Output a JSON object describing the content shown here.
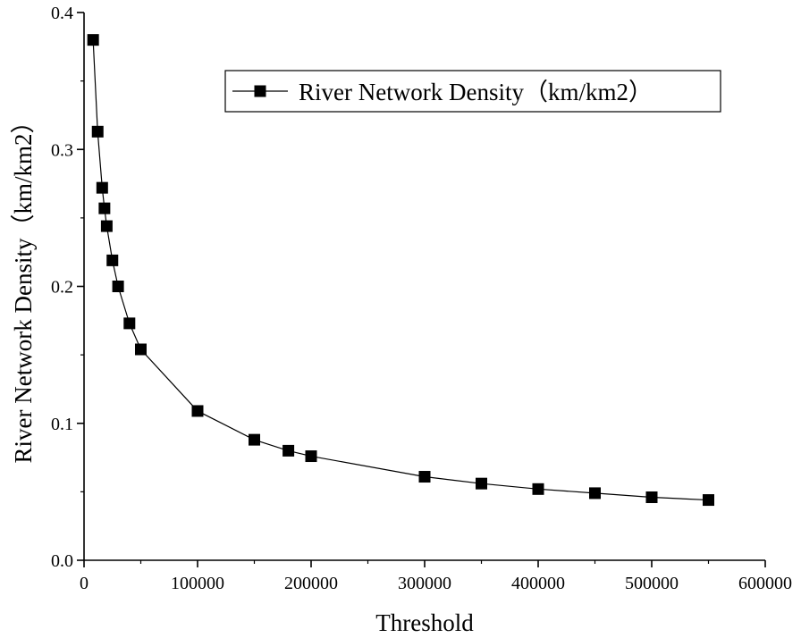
{
  "chart_data": {
    "type": "line",
    "title": "",
    "xlabel": "Threshold",
    "ylabel": "River Network Density（km/km2）",
    "xlim": [
      0,
      600000
    ],
    "ylim": [
      0.0,
      0.4
    ],
    "xticks": [
      0,
      100000,
      200000,
      300000,
      400000,
      500000,
      600000
    ],
    "xtick_labels": [
      "0",
      "100000",
      "200000",
      "300000",
      "400000",
      "500000",
      "600000"
    ],
    "yticks": [
      0.0,
      0.1,
      0.2,
      0.3,
      0.4
    ],
    "ytick_labels": [
      "0.0",
      "0.1",
      "0.2",
      "0.3",
      "0.4"
    ],
    "grid": false,
    "legend_position": "top-right",
    "series": [
      {
        "name": "River Network Density（km/km2）",
        "marker": "square",
        "color": "#000000",
        "x": [
          8000,
          12000,
          16000,
          18000,
          20000,
          25000,
          30000,
          40000,
          50000,
          100000,
          150000,
          180000,
          200000,
          300000,
          350000,
          400000,
          450000,
          500000,
          550000
        ],
        "y": [
          0.38,
          0.313,
          0.272,
          0.257,
          0.244,
          0.219,
          0.2,
          0.173,
          0.154,
          0.109,
          0.088,
          0.08,
          0.076,
          0.061,
          0.056,
          0.052,
          0.049,
          0.046,
          0.044
        ]
      }
    ]
  }
}
